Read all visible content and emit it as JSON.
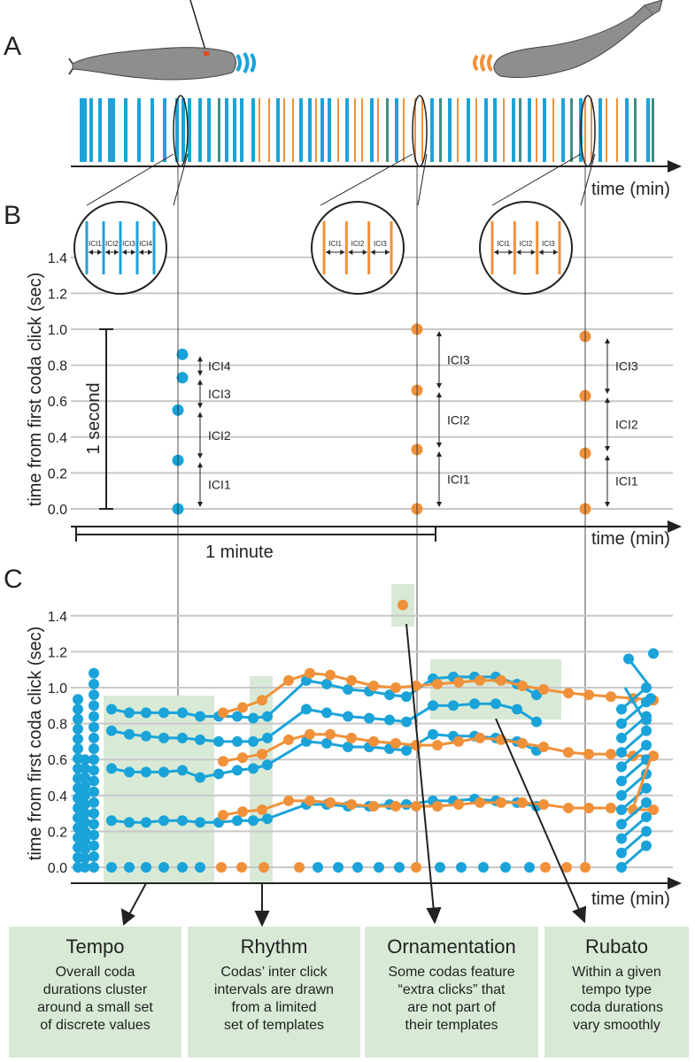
{
  "panels": {
    "a": "A",
    "b": "B",
    "c": "C"
  },
  "axis": {
    "time_label": "time (min)",
    "y_label": "time from first coda click (sec)",
    "b_ticks": [
      "0.0",
      "0.2",
      "0.4",
      "0.6",
      "0.8",
      "1.0",
      "1.2",
      "1.4"
    ],
    "c_ticks": [
      "0.0",
      "0.2",
      "0.4",
      "0.6",
      "0.8",
      "1.0",
      "1.2",
      "1.4"
    ]
  },
  "panel_b": {
    "one_second": "1 second",
    "one_minute": "1 minute",
    "zoom_labels": {
      "left": [
        "ICI1",
        "ICI2",
        "ICI3",
        "ICI4"
      ],
      "middle": [
        "ICI1",
        "ICI2",
        "ICI3"
      ],
      "right": [
        "ICI1",
        "ICI2",
        "ICI3"
      ]
    },
    "ici_labels": {
      "left": [
        "ICI1",
        "ICI2",
        "ICI3",
        "ICI4"
      ],
      "middle": [
        "ICI1",
        "ICI2",
        "ICI3"
      ],
      "right": [
        "ICI1",
        "ICI2",
        "ICI3"
      ]
    }
  },
  "chart_data": {
    "type": "scatter",
    "title": "",
    "xlabel": "time (min)",
    "ylabel": "time from first coda click (sec)",
    "ylim": [
      0,
      1.5
    ],
    "codas_b": [
      {
        "whale": "blue",
        "clicks": [
          0.0,
          0.27,
          0.55,
          0.73,
          0.86
        ]
      },
      {
        "whale": "orange",
        "clicks": [
          0.0,
          0.33,
          0.66,
          1.0
        ]
      },
      {
        "whale": "orange",
        "clicks": [
          0.0,
          0.31,
          0.63,
          0.96
        ]
      }
    ]
  },
  "cards": [
    {
      "title": "Tempo",
      "lines": [
        "Overall coda",
        "durations cluster",
        "around a small set",
        "of discrete values"
      ]
    },
    {
      "title": "Rhythm",
      "lines": [
        "Codas’ inter click",
        "intervals are drawn",
        "from a limited",
        "set of templates"
      ]
    },
    {
      "title": "Ornamentation",
      "lines": [
        "Some codas feature",
        "“extra clicks” that",
        "are not part of",
        "their templates"
      ]
    },
    {
      "title": "Rubato",
      "lines": [
        "Within a given",
        "tempo type",
        "coda durations",
        "vary smoothly"
      ]
    }
  ],
  "colors": {
    "blue": "#1aa3d9",
    "orange": "#f0913a",
    "green": "#d8ead6",
    "grid": "#c8c8c8"
  }
}
